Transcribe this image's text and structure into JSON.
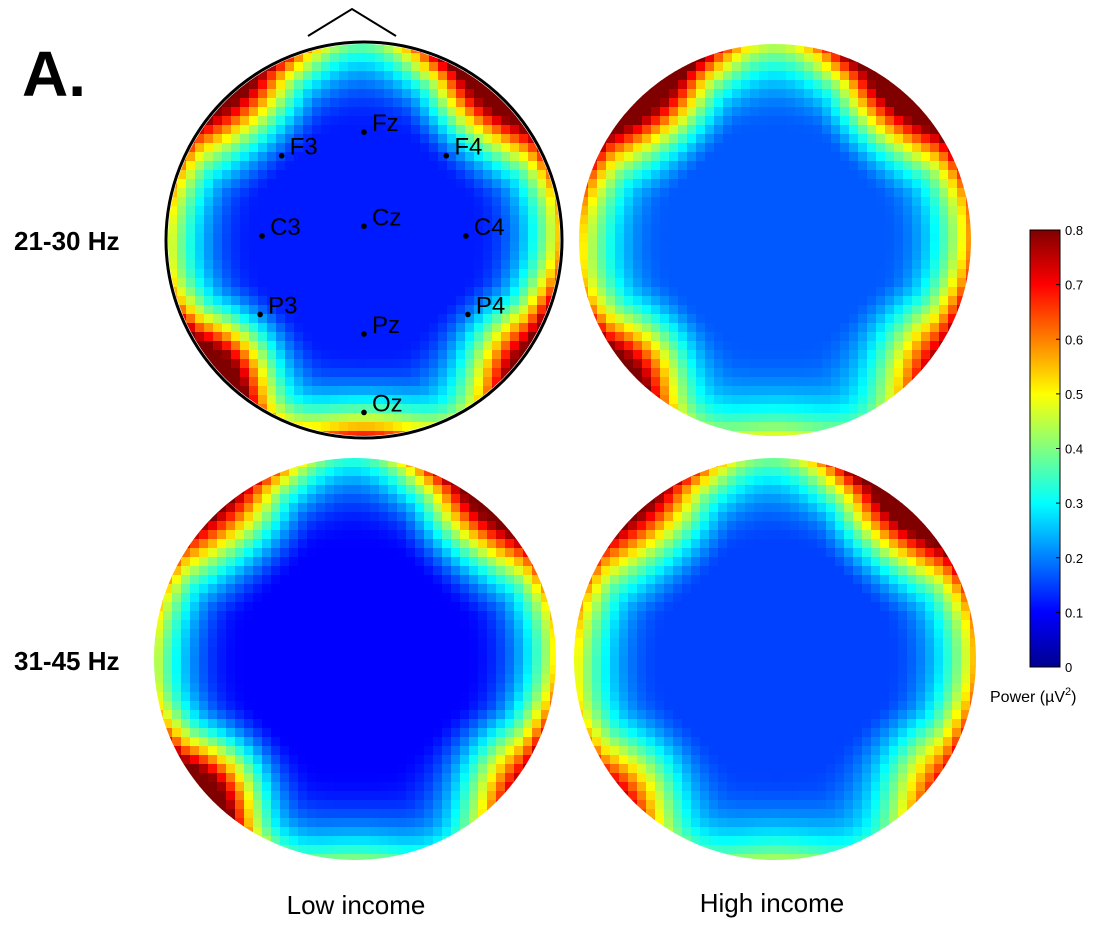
{
  "chart_data": {
    "type": "heatmap",
    "panel_label": "A.",
    "row_labels": [
      "21-30 Hz",
      "31-45 Hz"
    ],
    "column_labels": [
      "Low income",
      "High income"
    ],
    "colorbar": {
      "title_prefix": "Power (µV",
      "title_sup": "2",
      "title_suffix": ")",
      "range": [
        0,
        0.8
      ],
      "ticks": [
        "0",
        "0.1",
        "0.2",
        "0.3",
        "0.4",
        "0.5",
        "0.6",
        "0.7",
        "0.8"
      ],
      "colormap": "jet"
    },
    "electrodes": [
      {
        "label": "Fz",
        "x": 0.0,
        "y": -0.55
      },
      {
        "label": "F3",
        "x": -0.42,
        "y": -0.43
      },
      {
        "label": "F4",
        "x": 0.42,
        "y": -0.43
      },
      {
        "label": "Cz",
        "x": 0.0,
        "y": -0.07
      },
      {
        "label": "C3",
        "x": -0.52,
        "y": -0.02
      },
      {
        "label": "C4",
        "x": 0.52,
        "y": -0.02
      },
      {
        "label": "P3",
        "x": -0.53,
        "y": 0.38
      },
      {
        "label": "P4",
        "x": 0.53,
        "y": 0.38
      },
      {
        "label": "Pz",
        "x": 0.0,
        "y": 0.48
      },
      {
        "label": "Oz",
        "x": 0.0,
        "y": 0.88
      }
    ],
    "maps": [
      {
        "row": "21-30 Hz",
        "column": "Low income",
        "center_power": 0.12,
        "frontal_right_power": 0.8,
        "frontal_left_power": 0.68,
        "temporal_left_power": 0.78,
        "temporal_right_power": 0.6,
        "occipital_power": 0.55
      },
      {
        "row": "21-30 Hz",
        "column": "High income",
        "center_power": 0.17,
        "frontal_right_power": 0.8,
        "frontal_left_power": 0.8,
        "temporal_left_power": 0.6,
        "temporal_right_power": 0.45,
        "occipital_power": 0.3
      },
      {
        "row": "31-45 Hz",
        "column": "Low income",
        "center_power": 0.1,
        "frontal_right_power": 0.72,
        "frontal_left_power": 0.62,
        "temporal_left_power": 0.78,
        "temporal_right_power": 0.5,
        "occipital_power": 0.3
      },
      {
        "row": "31-45 Hz",
        "column": "High income",
        "center_power": 0.15,
        "frontal_right_power": 0.8,
        "frontal_left_power": 0.6,
        "temporal_left_power": 0.45,
        "temporal_right_power": 0.4,
        "occipital_power": 0.28
      }
    ]
  }
}
